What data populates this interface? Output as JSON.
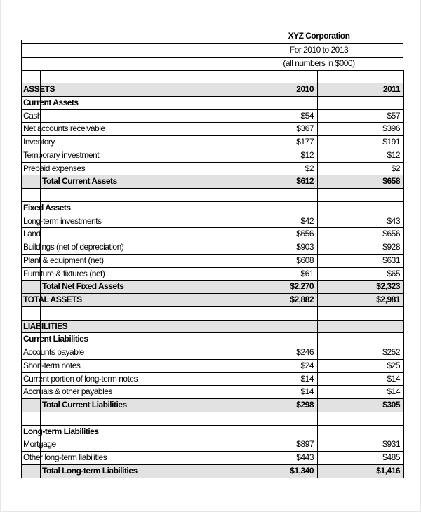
{
  "header": {
    "company": "XYZ Corporation",
    "period": "For 2010 to 2013",
    "units": "(all numbers in $000)"
  },
  "rows": [
    {
      "label": "ASSETS",
      "v2010": "2010",
      "v2011": "2011",
      "bold": true,
      "gray": true,
      "indent": false
    },
    {
      "label": "Current Assets",
      "v2010": "",
      "v2011": "",
      "bold": true,
      "gray": false,
      "indent": false
    },
    {
      "label": "Cash",
      "v2010": "$54",
      "v2011": "$57",
      "bold": false,
      "gray": false,
      "indent": false
    },
    {
      "label": "Net accounts receivable",
      "v2010": "$367",
      "v2011": "$396",
      "bold": false,
      "gray": false,
      "indent": false
    },
    {
      "label": "Inventory",
      "v2010": "$177",
      "v2011": "$191",
      "bold": false,
      "gray": false,
      "indent": false
    },
    {
      "label": "Temporary investment",
      "v2010": "$12",
      "v2011": "$12",
      "bold": false,
      "gray": false,
      "indent": false
    },
    {
      "label": "Prepaid expenses",
      "v2010": "$2",
      "v2011": "$2",
      "bold": false,
      "gray": false,
      "indent": false
    },
    {
      "label": "Total Current Assets",
      "v2010": "$612",
      "v2011": "$658",
      "bold": true,
      "gray": true,
      "indent": true
    },
    {
      "label": "",
      "v2010": "",
      "v2011": "",
      "bold": false,
      "gray": false,
      "indent": false
    },
    {
      "label": "Fixed Assets",
      "v2010": "",
      "v2011": "",
      "bold": true,
      "gray": false,
      "indent": false
    },
    {
      "label": "Long-term investments",
      "v2010": "$42",
      "v2011": "$43",
      "bold": false,
      "gray": false,
      "indent": false
    },
    {
      "label": "Land",
      "v2010": "$656",
      "v2011": "$656",
      "bold": false,
      "gray": false,
      "indent": false
    },
    {
      "label": "Buildings (net of depreciation)",
      "v2010": "$903",
      "v2011": "$928",
      "bold": false,
      "gray": false,
      "indent": false
    },
    {
      "label": "Plant & equipment (net)",
      "v2010": "$608",
      "v2011": "$631",
      "bold": false,
      "gray": false,
      "indent": false
    },
    {
      "label": "Furniture & fixtures (net)",
      "v2010": "$61",
      "v2011": "$65",
      "bold": false,
      "gray": false,
      "indent": false
    },
    {
      "label": "Total Net Fixed Assets",
      "v2010": "$2,270",
      "v2011": "$2,323",
      "bold": true,
      "gray": true,
      "indent": true
    },
    {
      "label": "TOTAL ASSETS",
      "v2010": "$2,882",
      "v2011": "$2,981",
      "bold": true,
      "gray": true,
      "indent": false
    },
    {
      "label": "",
      "v2010": "",
      "v2011": "",
      "bold": false,
      "gray": false,
      "indent": false
    },
    {
      "label": "LIABILITIES",
      "v2010": "",
      "v2011": "",
      "bold": true,
      "gray": true,
      "indent": false
    },
    {
      "label": "Current Liabilities",
      "v2010": "",
      "v2011": "",
      "bold": true,
      "gray": false,
      "indent": false
    },
    {
      "label": "Accounts payable",
      "v2010": "$246",
      "v2011": "$252",
      "bold": false,
      "gray": false,
      "indent": false
    },
    {
      "label": "Short-term notes",
      "v2010": "$24",
      "v2011": "$25",
      "bold": false,
      "gray": false,
      "indent": false
    },
    {
      "label": "Current portion of long-term notes",
      "v2010": "$14",
      "v2011": "$14",
      "bold": false,
      "gray": false,
      "indent": false
    },
    {
      "label": "Accruals & other payables",
      "v2010": "$14",
      "v2011": "$14",
      "bold": false,
      "gray": false,
      "indent": false
    },
    {
      "label": "Total Current Liabilities",
      "v2010": "$298",
      "v2011": "$305",
      "bold": true,
      "gray": true,
      "indent": true
    },
    {
      "label": "",
      "v2010": "",
      "v2011": "",
      "bold": false,
      "gray": false,
      "indent": false
    },
    {
      "label": "Long-term Liabilities",
      "v2010": "",
      "v2011": "",
      "bold": true,
      "gray": false,
      "indent": false
    },
    {
      "label": "Mortgage",
      "v2010": "$897",
      "v2011": "$931",
      "bold": false,
      "gray": false,
      "indent": false
    },
    {
      "label": "Other long-term liabilities",
      "v2010": "$443",
      "v2011": "$485",
      "bold": false,
      "gray": false,
      "indent": false
    },
    {
      "label": "Total Long-term Liabilities",
      "v2010": "$1,340",
      "v2011": "$1,416",
      "bold": true,
      "gray": true,
      "indent": true
    }
  ]
}
